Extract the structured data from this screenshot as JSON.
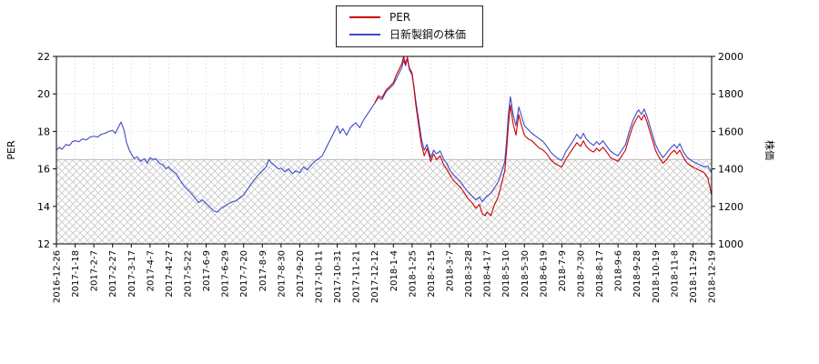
{
  "legend": {
    "items": [
      {
        "label": "PER",
        "color": "#cc0000"
      },
      {
        "label": "日新製鋼の株価",
        "color": "#3d4ac8"
      }
    ]
  },
  "chart_data": {
    "type": "line",
    "title": "",
    "x_labels": [
      "2016-12-26",
      "2017-1-18",
      "2017-2-7",
      "2017-2-27",
      "2017-3-17",
      "2017-4-7",
      "2017-4-27",
      "2017-5-22",
      "2017-6-9",
      "2017-6-29",
      "2017-7-20",
      "2017-8-9",
      "2017-8-30",
      "2017-9-20",
      "2017-10-11",
      "2017-10-31",
      "2017-11-21",
      "2017-12-12",
      "2018-1-4",
      "2018-1-25",
      "2018-2-15",
      "2018-3-7",
      "2018-3-28",
      "2018-4-17",
      "2018-5-10",
      "2018-5-30",
      "2018-6-19",
      "2018-7-9",
      "2018-7-30",
      "2018-8-17",
      "2018-9-6",
      "2018-9-28",
      "2018-10-19",
      "2018-11-8",
      "2018-11-29",
      "2018-12-19"
    ],
    "left_axis": {
      "label": "PER",
      "min": 12,
      "max": 22,
      "ticks": [
        12,
        14,
        16,
        18,
        20,
        22
      ]
    },
    "right_axis": {
      "label": "株価",
      "min": 1000,
      "max": 2000,
      "ticks": [
        1000,
        1200,
        1400,
        1600,
        1800,
        2000
      ]
    },
    "grid": true,
    "legend_position": "top-center",
    "hatch_region": {
      "left_axis_top": 16.5,
      "right_axis_top": 1450,
      "fill": "crosshatch",
      "color": "#c8c8c8"
    },
    "series": [
      {
        "name": "日新製鋼の株価",
        "axis": "right",
        "color": "#3d4ac8",
        "points": [
          [
            0,
            1500
          ],
          [
            0.15,
            1515
          ],
          [
            0.3,
            1505
          ],
          [
            0.5,
            1530
          ],
          [
            0.7,
            1525
          ],
          [
            0.85,
            1545
          ],
          [
            1,
            1550
          ],
          [
            1.2,
            1545
          ],
          [
            1.4,
            1560
          ],
          [
            1.6,
            1555
          ],
          [
            1.8,
            1570
          ],
          [
            2,
            1575
          ],
          [
            2.2,
            1570
          ],
          [
            2.4,
            1585
          ],
          [
            2.6,
            1590
          ],
          [
            2.8,
            1600
          ],
          [
            3,
            1605
          ],
          [
            3.15,
            1590
          ],
          [
            3.3,
            1620
          ],
          [
            3.45,
            1650
          ],
          [
            3.6,
            1610
          ],
          [
            3.75,
            1540
          ],
          [
            3.9,
            1500
          ],
          [
            4,
            1480
          ],
          [
            4.15,
            1455
          ],
          [
            4.3,
            1465
          ],
          [
            4.5,
            1440
          ],
          [
            4.7,
            1455
          ],
          [
            4.85,
            1430
          ],
          [
            5,
            1460
          ],
          [
            5.15,
            1450
          ],
          [
            5.3,
            1455
          ],
          [
            5.5,
            1430
          ],
          [
            5.7,
            1420
          ],
          [
            5.85,
            1400
          ],
          [
            6,
            1410
          ],
          [
            6.2,
            1390
          ],
          [
            6.4,
            1375
          ],
          [
            6.6,
            1340
          ],
          [
            6.8,
            1310
          ],
          [
            7,
            1290
          ],
          [
            7.2,
            1270
          ],
          [
            7.4,
            1245
          ],
          [
            7.6,
            1220
          ],
          [
            7.8,
            1235
          ],
          [
            8,
            1215
          ],
          [
            8.2,
            1195
          ],
          [
            8.4,
            1175
          ],
          [
            8.6,
            1170
          ],
          [
            8.8,
            1190
          ],
          [
            9,
            1200
          ],
          [
            9.2,
            1215
          ],
          [
            9.4,
            1225
          ],
          [
            9.6,
            1230
          ],
          [
            9.8,
            1245
          ],
          [
            10,
            1260
          ],
          [
            10.2,
            1290
          ],
          [
            10.4,
            1320
          ],
          [
            10.6,
            1345
          ],
          [
            10.8,
            1370
          ],
          [
            11,
            1390
          ],
          [
            11.2,
            1410
          ],
          [
            11.35,
            1450
          ],
          [
            11.5,
            1430
          ],
          [
            11.7,
            1415
          ],
          [
            11.85,
            1400
          ],
          [
            12,
            1405
          ],
          [
            12.2,
            1385
          ],
          [
            12.4,
            1400
          ],
          [
            12.6,
            1375
          ],
          [
            12.8,
            1390
          ],
          [
            13,
            1380
          ],
          [
            13.2,
            1410
          ],
          [
            13.4,
            1395
          ],
          [
            13.6,
            1420
          ],
          [
            13.8,
            1440
          ],
          [
            14,
            1455
          ],
          [
            14.2,
            1470
          ],
          [
            14.4,
            1510
          ],
          [
            14.6,
            1550
          ],
          [
            14.8,
            1590
          ],
          [
            15,
            1630
          ],
          [
            15.15,
            1590
          ],
          [
            15.3,
            1615
          ],
          [
            15.5,
            1580
          ],
          [
            15.7,
            1620
          ],
          [
            15.85,
            1635
          ],
          [
            16,
            1645
          ],
          [
            16.2,
            1620
          ],
          [
            16.4,
            1660
          ],
          [
            16.6,
            1690
          ],
          [
            16.8,
            1720
          ],
          [
            17,
            1750
          ],
          [
            17.2,
            1780
          ],
          [
            17.4,
            1770
          ],
          [
            17.6,
            1810
          ],
          [
            17.8,
            1830
          ],
          [
            18,
            1850
          ],
          [
            18.15,
            1880
          ],
          [
            18.3,
            1910
          ],
          [
            18.45,
            1940
          ],
          [
            18.55,
            1980
          ],
          [
            18.65,
            1950
          ],
          [
            18.75,
            1990
          ],
          [
            18.85,
            1930
          ],
          [
            19,
            1900
          ],
          [
            19.1,
            1840
          ],
          [
            19.2,
            1760
          ],
          [
            19.35,
            1660
          ],
          [
            19.5,
            1560
          ],
          [
            19.65,
            1500
          ],
          [
            19.8,
            1530
          ],
          [
            20,
            1460
          ],
          [
            20.15,
            1500
          ],
          [
            20.3,
            1480
          ],
          [
            20.5,
            1495
          ],
          [
            20.7,
            1450
          ],
          [
            20.85,
            1430
          ],
          [
            21,
            1395
          ],
          [
            21.2,
            1370
          ],
          [
            21.4,
            1350
          ],
          [
            21.6,
            1330
          ],
          [
            21.8,
            1300
          ],
          [
            22,
            1275
          ],
          [
            22.2,
            1255
          ],
          [
            22.4,
            1235
          ],
          [
            22.6,
            1250
          ],
          [
            22.75,
            1225
          ],
          [
            22.9,
            1245
          ],
          [
            23,
            1255
          ],
          [
            23.2,
            1270
          ],
          [
            23.4,
            1300
          ],
          [
            23.6,
            1330
          ],
          [
            23.8,
            1390
          ],
          [
            23.95,
            1440
          ],
          [
            24.05,
            1550
          ],
          [
            24.15,
            1700
          ],
          [
            24.25,
            1785
          ],
          [
            24.4,
            1690
          ],
          [
            24.55,
            1630
          ],
          [
            24.7,
            1730
          ],
          [
            24.85,
            1680
          ],
          [
            25,
            1630
          ],
          [
            25.2,
            1610
          ],
          [
            25.4,
            1590
          ],
          [
            25.6,
            1575
          ],
          [
            25.8,
            1560
          ],
          [
            26,
            1545
          ],
          [
            26.2,
            1520
          ],
          [
            26.4,
            1490
          ],
          [
            26.6,
            1470
          ],
          [
            26.8,
            1455
          ],
          [
            27,
            1445
          ],
          [
            27.2,
            1490
          ],
          [
            27.4,
            1520
          ],
          [
            27.6,
            1550
          ],
          [
            27.8,
            1585
          ],
          [
            28,
            1560
          ],
          [
            28.15,
            1590
          ],
          [
            28.3,
            1560
          ],
          [
            28.5,
            1540
          ],
          [
            28.7,
            1525
          ],
          [
            28.85,
            1545
          ],
          [
            29,
            1530
          ],
          [
            29.2,
            1550
          ],
          [
            29.4,
            1520
          ],
          [
            29.6,
            1495
          ],
          [
            29.8,
            1480
          ],
          [
            30,
            1470
          ],
          [
            30.2,
            1500
          ],
          [
            30.4,
            1530
          ],
          [
            30.6,
            1600
          ],
          [
            30.8,
            1660
          ],
          [
            31,
            1700
          ],
          [
            31.1,
            1715
          ],
          [
            31.25,
            1690
          ],
          [
            31.4,
            1720
          ],
          [
            31.55,
            1680
          ],
          [
            31.7,
            1630
          ],
          [
            31.85,
            1580
          ],
          [
            32,
            1530
          ],
          [
            32.2,
            1490
          ],
          [
            32.4,
            1460
          ],
          [
            32.6,
            1485
          ],
          [
            32.8,
            1510
          ],
          [
            33,
            1530
          ],
          [
            33.15,
            1510
          ],
          [
            33.3,
            1535
          ],
          [
            33.5,
            1490
          ],
          [
            33.7,
            1460
          ],
          [
            33.85,
            1450
          ],
          [
            34,
            1440
          ],
          [
            34.2,
            1430
          ],
          [
            34.4,
            1420
          ],
          [
            34.6,
            1410
          ],
          [
            34.8,
            1415
          ],
          [
            35,
            1380
          ]
        ]
      },
      {
        "name": "PER",
        "axis": "left",
        "color": "#cc0000",
        "points": [
          [
            17,
            19.5
          ],
          [
            17.2,
            19.9
          ],
          [
            17.4,
            19.8
          ],
          [
            17.6,
            20.2
          ],
          [
            17.8,
            20.4
          ],
          [
            18,
            20.6
          ],
          [
            18.15,
            21.0
          ],
          [
            18.3,
            21.3
          ],
          [
            18.45,
            21.6
          ],
          [
            18.55,
            22.0
          ],
          [
            18.65,
            21.6
          ],
          [
            18.75,
            21.95
          ],
          [
            18.85,
            21.4
          ],
          [
            19,
            21.1
          ],
          [
            19.1,
            20.3
          ],
          [
            19.2,
            19.4
          ],
          [
            19.35,
            18.3
          ],
          [
            19.5,
            17.3
          ],
          [
            19.65,
            16.7
          ],
          [
            19.8,
            17.1
          ],
          [
            20,
            16.4
          ],
          [
            20.15,
            16.8
          ],
          [
            20.3,
            16.5
          ],
          [
            20.5,
            16.7
          ],
          [
            20.7,
            16.2
          ],
          [
            20.85,
            16.0
          ],
          [
            21,
            15.7
          ],
          [
            21.2,
            15.4
          ],
          [
            21.4,
            15.2
          ],
          [
            21.6,
            15.0
          ],
          [
            21.8,
            14.7
          ],
          [
            22,
            14.4
          ],
          [
            22.2,
            14.2
          ],
          [
            22.4,
            13.9
          ],
          [
            22.6,
            14.1
          ],
          [
            22.75,
            13.6
          ],
          [
            22.9,
            13.5
          ],
          [
            23,
            13.7
          ],
          [
            23.2,
            13.5
          ],
          [
            23.4,
            14.1
          ],
          [
            23.6,
            14.5
          ],
          [
            23.8,
            15.3
          ],
          [
            23.95,
            15.9
          ],
          [
            24.05,
            17.0
          ],
          [
            24.15,
            18.4
          ],
          [
            24.25,
            19.4
          ],
          [
            24.4,
            18.4
          ],
          [
            24.55,
            17.8
          ],
          [
            24.7,
            18.9
          ],
          [
            24.85,
            18.3
          ],
          [
            25,
            17.8
          ],
          [
            25.2,
            17.6
          ],
          [
            25.4,
            17.5
          ],
          [
            25.6,
            17.3
          ],
          [
            25.8,
            17.1
          ],
          [
            26,
            17.0
          ],
          [
            26.2,
            16.8
          ],
          [
            26.4,
            16.5
          ],
          [
            26.6,
            16.3
          ],
          [
            26.8,
            16.2
          ],
          [
            27,
            16.1
          ],
          [
            27.2,
            16.5
          ],
          [
            27.4,
            16.8
          ],
          [
            27.6,
            17.1
          ],
          [
            27.8,
            17.4
          ],
          [
            28,
            17.2
          ],
          [
            28.15,
            17.5
          ],
          [
            28.3,
            17.2
          ],
          [
            28.5,
            17.0
          ],
          [
            28.7,
            16.9
          ],
          [
            28.85,
            17.1
          ],
          [
            29,
            16.95
          ],
          [
            29.2,
            17.15
          ],
          [
            29.4,
            16.9
          ],
          [
            29.6,
            16.6
          ],
          [
            29.8,
            16.5
          ],
          [
            30,
            16.4
          ],
          [
            30.2,
            16.7
          ],
          [
            30.4,
            17.0
          ],
          [
            30.6,
            17.7
          ],
          [
            30.8,
            18.3
          ],
          [
            31,
            18.7
          ],
          [
            31.1,
            18.85
          ],
          [
            31.25,
            18.6
          ],
          [
            31.4,
            18.9
          ],
          [
            31.55,
            18.5
          ],
          [
            31.7,
            18.0
          ],
          [
            31.85,
            17.5
          ],
          [
            32,
            17.0
          ],
          [
            32.2,
            16.6
          ],
          [
            32.4,
            16.3
          ],
          [
            32.6,
            16.5
          ],
          [
            32.8,
            16.8
          ],
          [
            33,
            17.0
          ],
          [
            33.15,
            16.8
          ],
          [
            33.3,
            17.0
          ],
          [
            33.5,
            16.6
          ],
          [
            33.7,
            16.3
          ],
          [
            33.85,
            16.2
          ],
          [
            34,
            16.1
          ],
          [
            34.2,
            16.0
          ],
          [
            34.4,
            15.9
          ],
          [
            34.6,
            15.8
          ],
          [
            34.8,
            15.5
          ],
          [
            35,
            14.6
          ]
        ]
      }
    ]
  }
}
